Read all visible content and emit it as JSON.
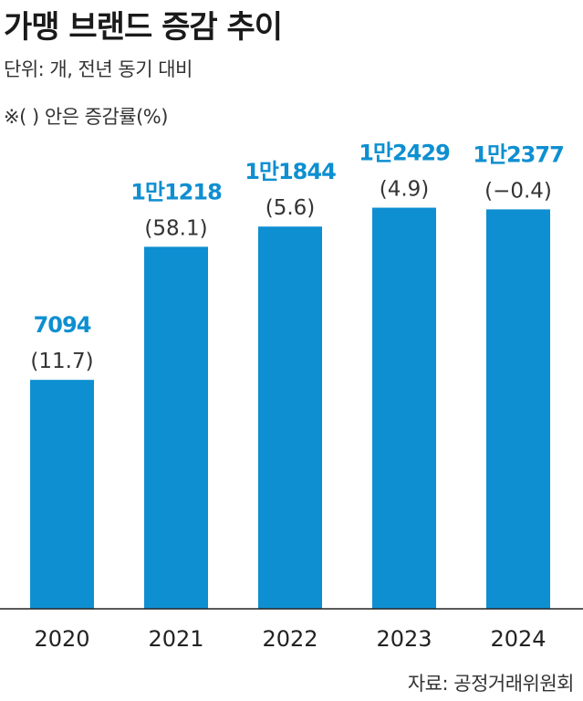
{
  "title": "가맹 브랜드 증감 추이",
  "unit_note": "단위: 개, 전년 동기 대비",
  "paren_note": "※( ) 안은 증감률(%)",
  "source": "자료: 공정거래위원회",
  "colors": {
    "bar": "#0e8fd1",
    "value_label": "#0e8fd1",
    "change_label": "#333333",
    "axis": "#222222"
  },
  "chart_data": {
    "type": "bar",
    "categories": [
      "2020",
      "2021",
      "2022",
      "2023",
      "2024"
    ],
    "values": [
      7094,
      11218,
      11844,
      12429,
      12377
    ],
    "value_labels": [
      "7094",
      "1만1218",
      "1만1844",
      "1만2429",
      "1만2377"
    ],
    "change_labels": [
      "(11.7)",
      "(58.1)",
      "(5.6)",
      "(4.9)",
      "(−0.4)"
    ],
    "ylim": [
      0,
      14000
    ],
    "grid": false,
    "legend": "none"
  }
}
